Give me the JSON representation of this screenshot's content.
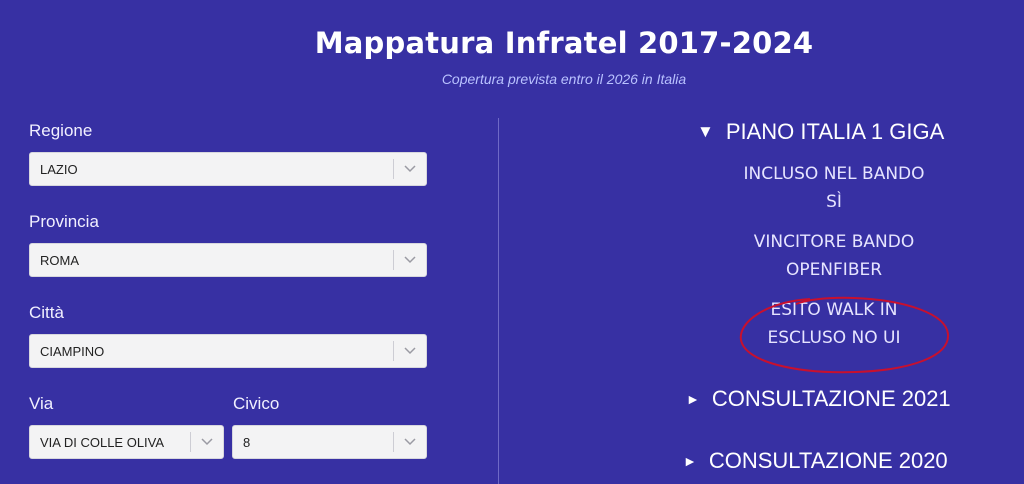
{
  "header": {
    "title": "Mappatura Infratel 2017-2024",
    "subtitle": "Copertura prevista entro il 2026 in Italia"
  },
  "form": {
    "regione": {
      "label": "Regione",
      "value": "LAZIO"
    },
    "provincia": {
      "label": "Provincia",
      "value": "ROMA"
    },
    "citta": {
      "label": "Città",
      "value": "CIAMPINO"
    },
    "via": {
      "label": "Via",
      "value": "VIA DI COLLE OLIVA"
    },
    "civico": {
      "label": "Civico",
      "value": "8"
    }
  },
  "results": {
    "piano": {
      "toggle": "▼",
      "title": "PIANO ITALIA 1 GIGA",
      "incluso_label": "INCLUSO NEL BANDO",
      "incluso_value": "SÌ",
      "vincitore_label": "VINCITORE BANDO",
      "vincitore_value": "OPENFIBER",
      "esito_label": "ESITO WALK IN",
      "esito_value": "ESCLUSO NO UI"
    },
    "consultazione_2021": {
      "toggle": "►",
      "title": "CONSULTAZIONE 2021"
    },
    "consultazione_2020": {
      "toggle": "►",
      "title": "CONSULTAZIONE 2020"
    }
  },
  "colors": {
    "background": "#3730a3",
    "annotation": "#c8102e"
  },
  "icons": {
    "dropdown": "chevron-down-icon",
    "expanded": "triangle-down-icon",
    "collapsed": "triangle-right-icon"
  }
}
